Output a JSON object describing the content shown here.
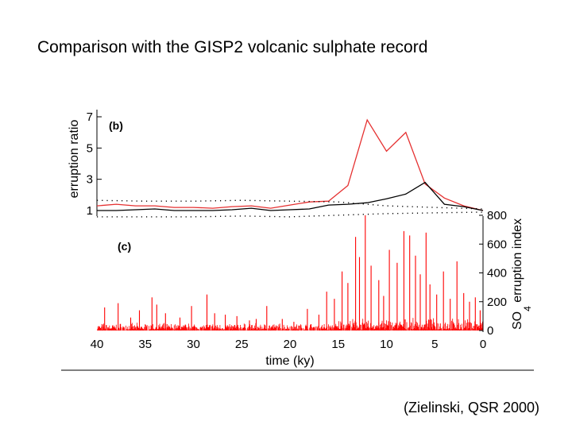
{
  "slide": {
    "title": "Comparison with the GISP2 volcanic sulphate record",
    "citation": "(Zielinski, QSR 2000)"
  },
  "chart_data": [
    {
      "type": "line",
      "panel_label": "(b)",
      "ylabel": "erruption ratio",
      "xlabel": "time (ky)",
      "x_reversed": true,
      "xlim": [
        40,
        0
      ],
      "ylim": [
        1,
        7
      ],
      "yticks": [
        1,
        3,
        5,
        7
      ],
      "series": [
        {
          "color": "#e53030",
          "x": [
            40,
            38,
            36,
            34,
            32,
            30,
            28,
            26,
            24,
            22,
            20,
            18,
            16,
            14,
            12,
            10,
            8,
            6,
            4,
            2,
            0
          ],
          "y": [
            1.3,
            1.4,
            1.3,
            1.3,
            1.2,
            1.2,
            1.15,
            1.25,
            1.3,
            1.15,
            1.35,
            1.55,
            1.6,
            2.6,
            6.8,
            4.8,
            6.0,
            2.7,
            1.8,
            1.3,
            1.0
          ]
        },
        {
          "color": "#000000",
          "x": [
            40,
            38,
            36,
            34,
            32,
            30,
            28,
            26,
            24,
            22,
            20,
            18,
            16,
            14,
            12,
            10,
            8,
            6,
            4,
            2,
            0
          ],
          "y": [
            1.0,
            1.0,
            1.05,
            1.1,
            1.0,
            1.0,
            1.0,
            1.05,
            1.15,
            1.0,
            1.05,
            1.1,
            1.35,
            1.4,
            1.5,
            1.75,
            2.05,
            2.8,
            1.4,
            1.25,
            1.0
          ]
        },
        {
          "color": "#000000",
          "style": "dotted",
          "x": [
            40,
            35,
            30,
            25,
            20,
            15,
            10,
            5,
            0
          ],
          "y": [
            1.65,
            1.6,
            1.6,
            1.65,
            1.6,
            1.55,
            1.3,
            1.2,
            1.1
          ]
        },
        {
          "color": "#000000",
          "style": "dotted",
          "x": [
            40,
            35,
            30,
            25,
            20,
            15,
            10,
            5,
            0
          ],
          "y": [
            0.6,
            0.6,
            0.6,
            0.65,
            0.6,
            0.7,
            0.8,
            0.85,
            0.9
          ]
        }
      ]
    },
    {
      "type": "bar",
      "panel_label": "(c)",
      "ylabel_main": "SO",
      "ylabel_sub": "4",
      "ylabel_rest": " erruption index",
      "xlabel": "time (ky)",
      "x_reversed": true,
      "xlim": [
        40,
        0
      ],
      "ylim": [
        0,
        800
      ],
      "yticks": [
        0,
        200,
        400,
        600,
        800
      ],
      "xticks": [
        40,
        35,
        30,
        25,
        20,
        15,
        10,
        5,
        0
      ],
      "color": "#ff0000",
      "baseline_noise_max": 55,
      "peaks": [
        {
          "x": 39.2,
          "y": 160
        },
        {
          "x": 37.8,
          "y": 190
        },
        {
          "x": 36.5,
          "y": 90
        },
        {
          "x": 35.6,
          "y": 140
        },
        {
          "x": 34.3,
          "y": 230
        },
        {
          "x": 33.8,
          "y": 180
        },
        {
          "x": 32.9,
          "y": 120
        },
        {
          "x": 31.4,
          "y": 90
        },
        {
          "x": 30.2,
          "y": 170
        },
        {
          "x": 28.6,
          "y": 250
        },
        {
          "x": 27.8,
          "y": 120
        },
        {
          "x": 26.7,
          "y": 110
        },
        {
          "x": 25.5,
          "y": 100
        },
        {
          "x": 24.2,
          "y": 70
        },
        {
          "x": 23.5,
          "y": 80
        },
        {
          "x": 22.4,
          "y": 170
        },
        {
          "x": 20.8,
          "y": 80
        },
        {
          "x": 19.6,
          "y": 60
        },
        {
          "x": 18.2,
          "y": 150
        },
        {
          "x": 17.0,
          "y": 110
        },
        {
          "x": 16.2,
          "y": 270
        },
        {
          "x": 15.4,
          "y": 220
        },
        {
          "x": 14.6,
          "y": 410
        },
        {
          "x": 14.0,
          "y": 330
        },
        {
          "x": 13.2,
          "y": 650
        },
        {
          "x": 12.8,
          "y": 510
        },
        {
          "x": 12.2,
          "y": 800
        },
        {
          "x": 11.6,
          "y": 450
        },
        {
          "x": 10.8,
          "y": 350
        },
        {
          "x": 10.3,
          "y": 240
        },
        {
          "x": 9.7,
          "y": 560
        },
        {
          "x": 8.9,
          "y": 470
        },
        {
          "x": 8.2,
          "y": 690
        },
        {
          "x": 7.6,
          "y": 660
        },
        {
          "x": 7.0,
          "y": 520
        },
        {
          "x": 6.5,
          "y": 390
        },
        {
          "x": 5.9,
          "y": 680
        },
        {
          "x": 5.5,
          "y": 320
        },
        {
          "x": 4.8,
          "y": 250
        },
        {
          "x": 4.1,
          "y": 410
        },
        {
          "x": 3.4,
          "y": 220
        },
        {
          "x": 2.7,
          "y": 480
        },
        {
          "x": 2.0,
          "y": 260
        },
        {
          "x": 1.4,
          "y": 200
        },
        {
          "x": 0.8,
          "y": 230
        },
        {
          "x": 0.3,
          "y": 140
        }
      ]
    }
  ]
}
